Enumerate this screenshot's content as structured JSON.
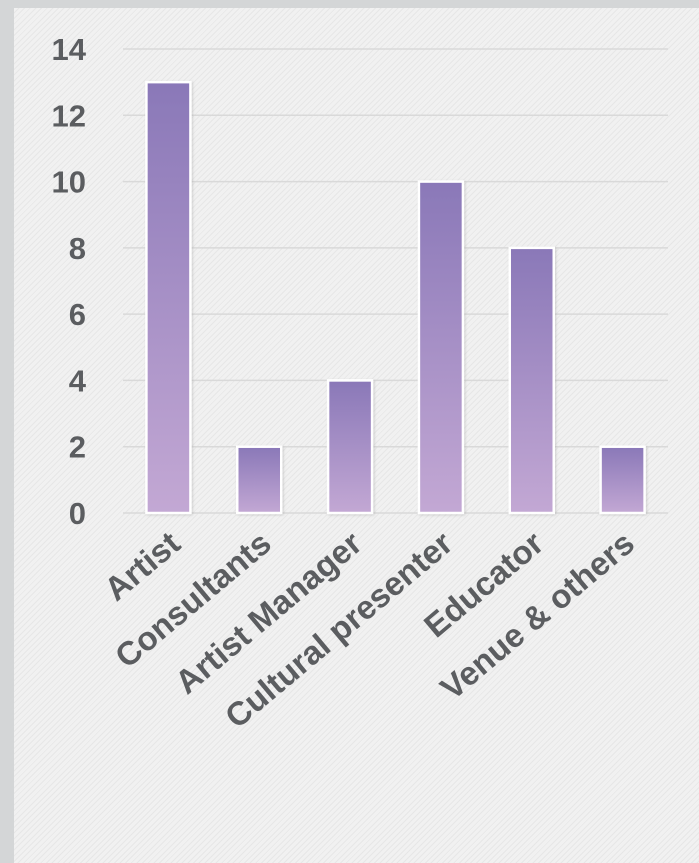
{
  "chart_data": {
    "type": "bar",
    "categories": [
      "Artist",
      "Consultants",
      "Artist Manager",
      "Cultural presenter",
      "Educator",
      "Venue & others"
    ],
    "values": [
      13,
      2,
      4,
      10,
      8,
      2
    ],
    "title": "",
    "xlabel": "",
    "ylabel": "",
    "ylim": [
      0,
      14
    ],
    "yticks": [
      "0",
      "2",
      "4",
      "6",
      "8",
      "10",
      "12",
      "14"
    ],
    "grid": true,
    "legend": "none",
    "bar_color_top": "#8a78b8",
    "bar_color_bottom": "#c3a8d4"
  }
}
